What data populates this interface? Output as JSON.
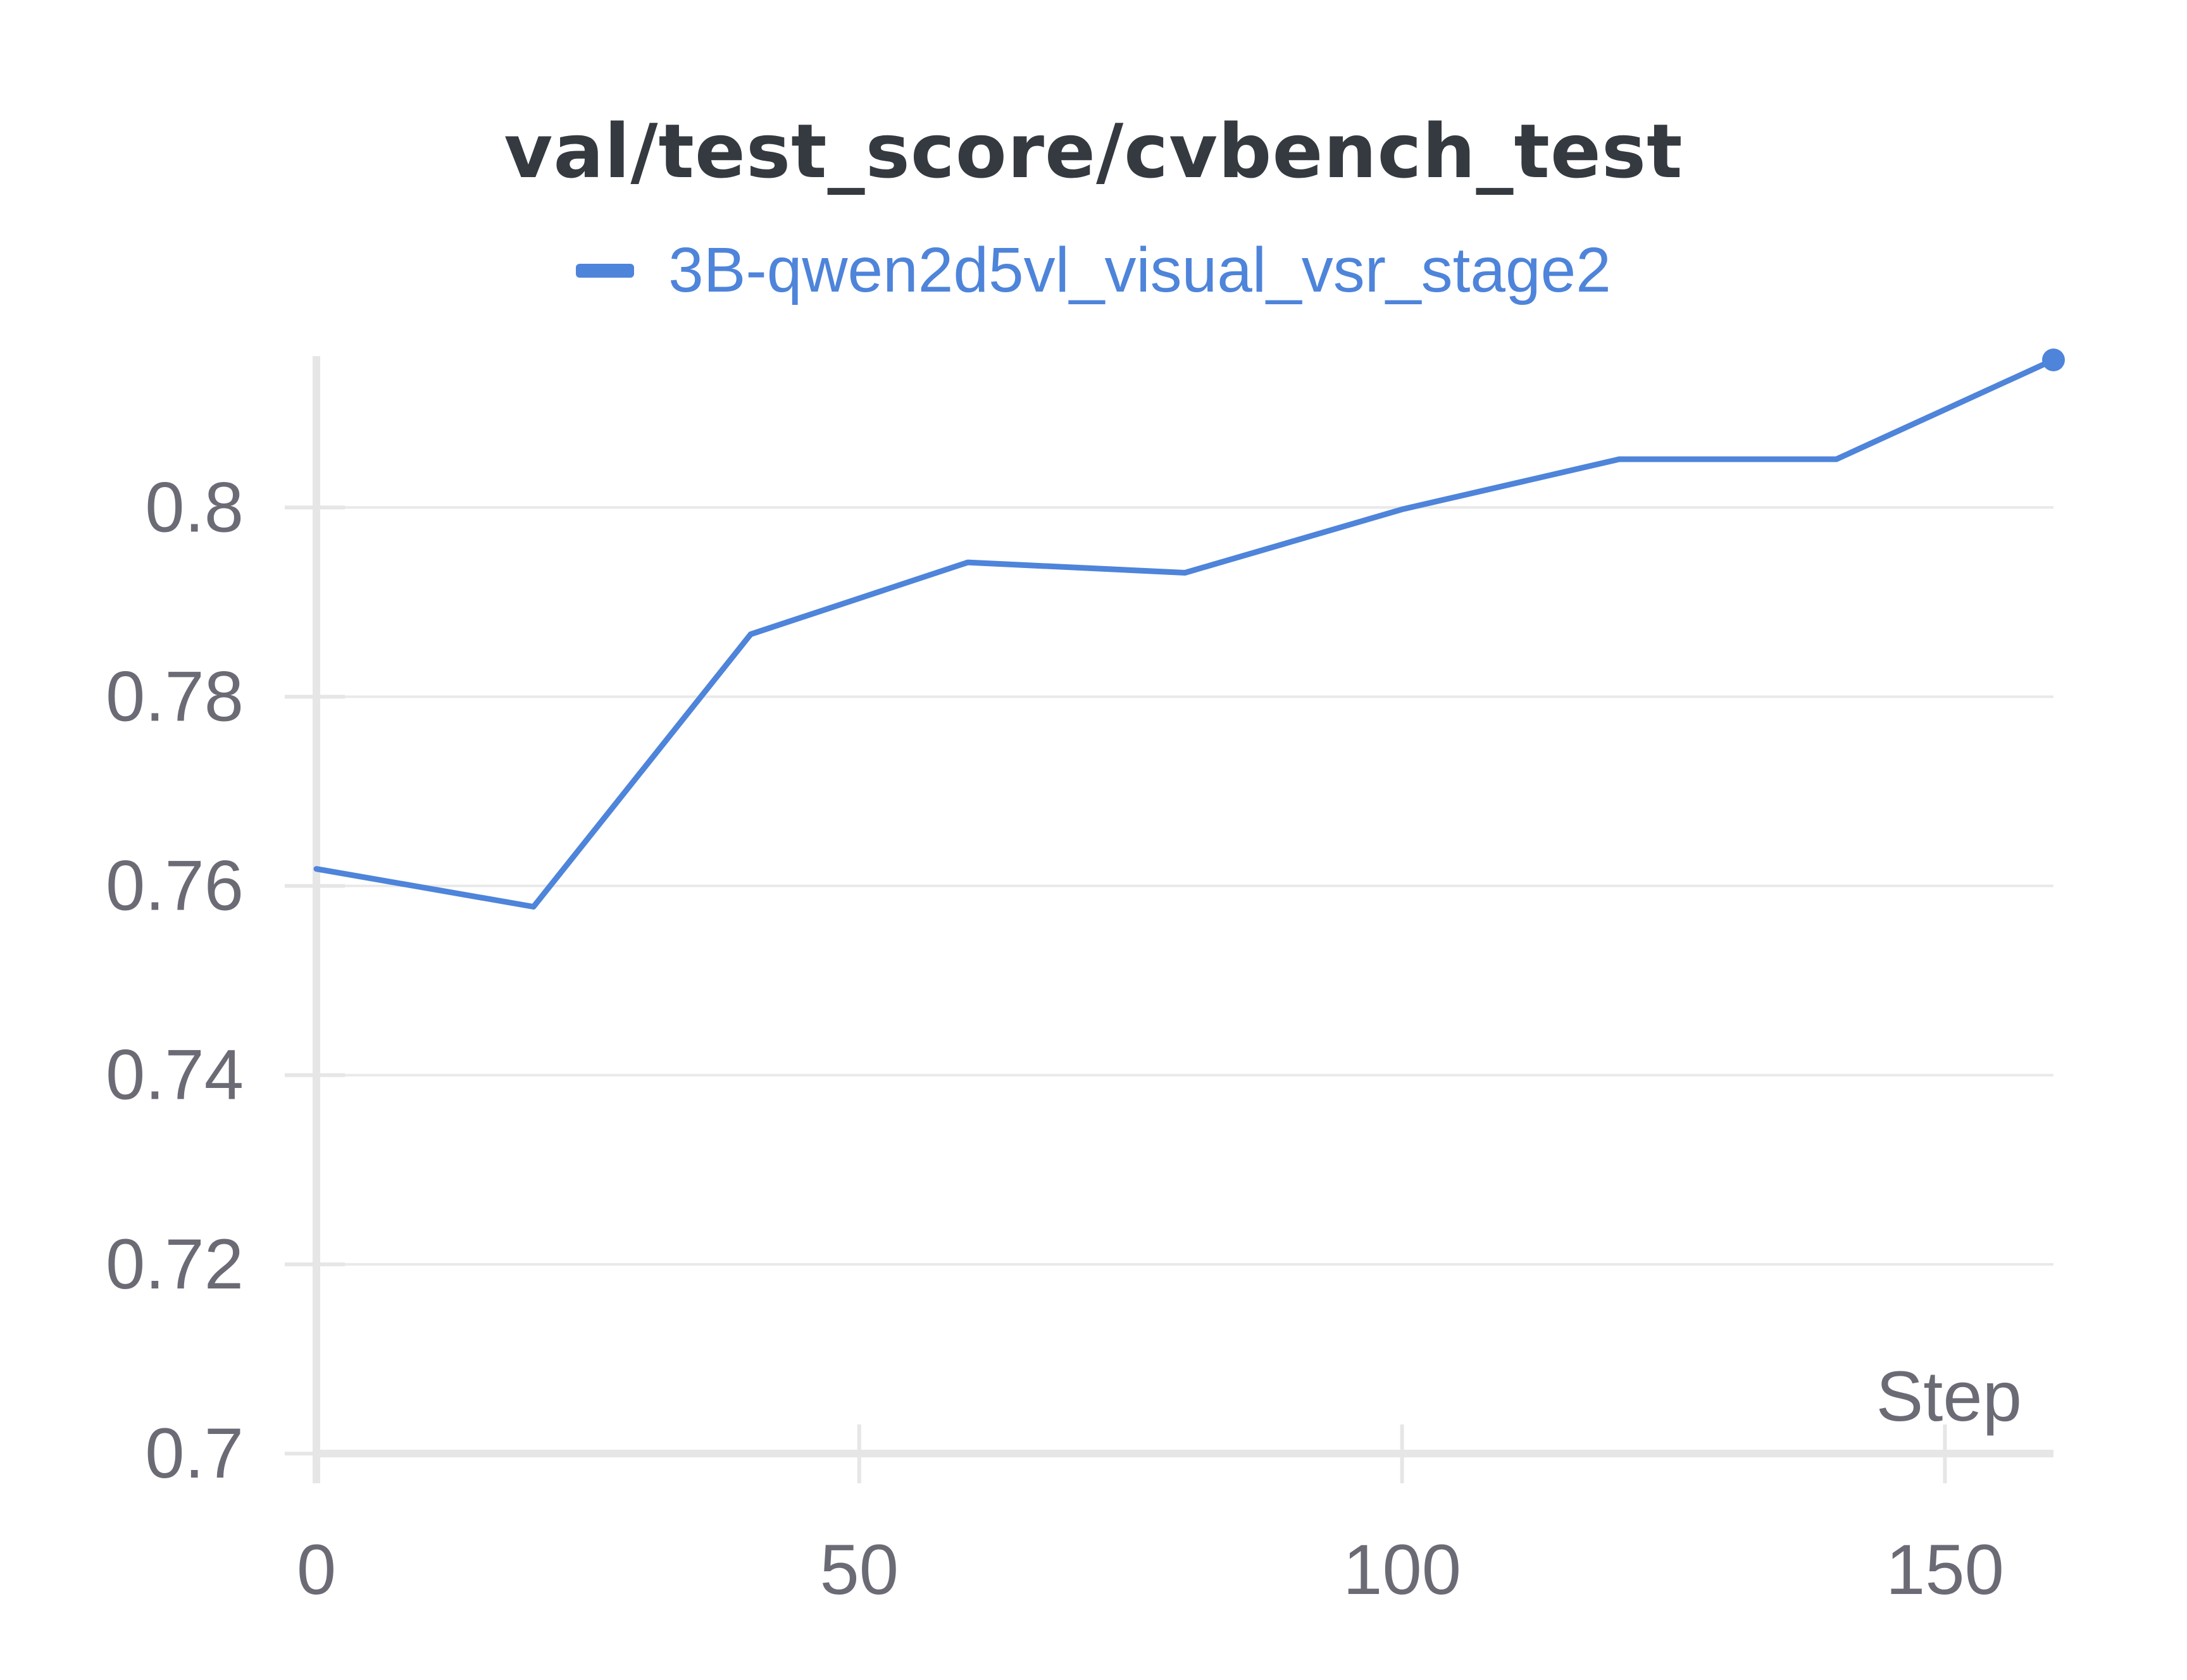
{
  "colors": {
    "series": "#4e84da",
    "title": "#343a40",
    "tick_text": "#6b6b76",
    "axis": "#e6e6e6",
    "grid": "#e9e9e9"
  },
  "chart_data": {
    "type": "line",
    "title": "val/test_score/cvbench_test",
    "xlabel": "Step",
    "ylabel": "",
    "xlim": [
      0,
      160
    ],
    "ylim": [
      0.7,
      0.816
    ],
    "x_ticks": [
      0,
      50,
      100,
      150
    ],
    "x_tick_labels": [
      "0",
      "50",
      "100",
      "150"
    ],
    "y_ticks": [
      0.7,
      0.72,
      0.74,
      0.76,
      0.78,
      0.8
    ],
    "y_tick_labels": [
      "0.7",
      "0.72",
      "0.74",
      "0.76",
      "0.78",
      "0.8"
    ],
    "grid": true,
    "legend_position": "top-center",
    "series": [
      {
        "name": "3B-qwen2d5vl_visual_vsr_stage2",
        "x": [
          0,
          20,
          40,
          60,
          80,
          100,
          120,
          140,
          160
        ],
        "y": [
          0.7618,
          0.7578,
          0.7866,
          0.7942,
          0.7931,
          0.7998,
          0.8051,
          0.8051,
          0.8156
        ]
      }
    ]
  }
}
